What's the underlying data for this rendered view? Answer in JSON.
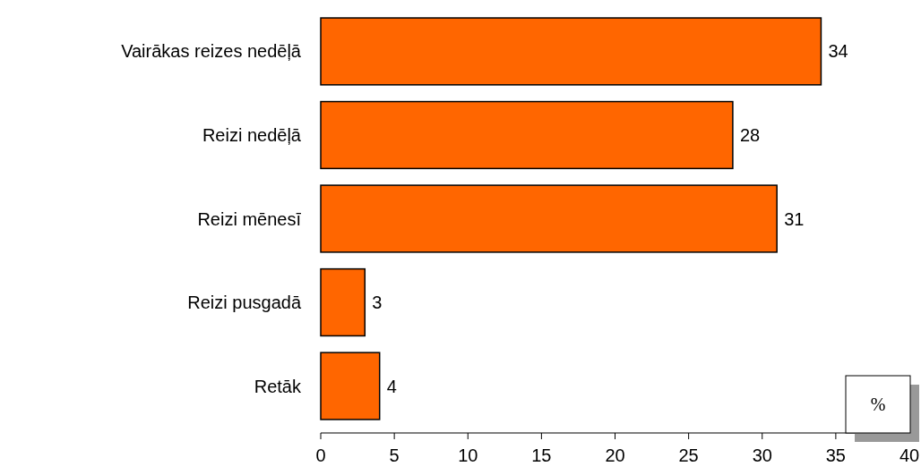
{
  "chart_data": {
    "type": "bar",
    "orientation": "horizontal",
    "categories": [
      "Vairākas reizes nedēļā",
      "Reizi nedēļā",
      "Reizi mēnesī",
      "Reizi pusgadā",
      "Retāk"
    ],
    "values": [
      34,
      28,
      31,
      3,
      4
    ],
    "color": "#ff6600",
    "xlim": [
      0,
      40
    ],
    "xticks": [
      0,
      5,
      10,
      15,
      20,
      25,
      30,
      35,
      40
    ],
    "data_labels": true,
    "grid": false,
    "annotations": [
      "%"
    ]
  }
}
